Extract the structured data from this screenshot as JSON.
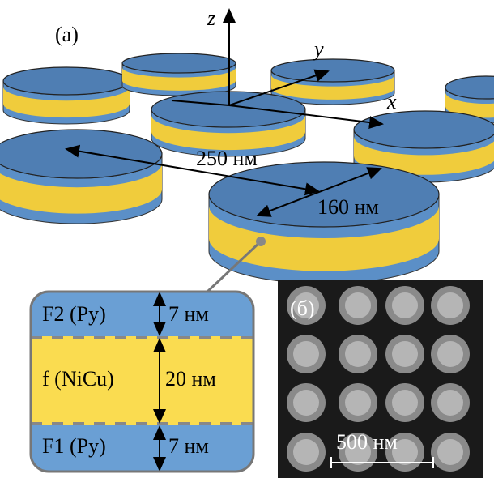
{
  "panel_a": {
    "label": "(a)",
    "axes": {
      "z": "z",
      "y": "y",
      "x": "x"
    },
    "dimensions": {
      "period": "250 нм",
      "diameter": "160 нм"
    },
    "layers": [
      {
        "name": "F2 (Py)",
        "thickness": "7 нм"
      },
      {
        "name": "f (NiCu)",
        "thickness": "20 нм"
      },
      {
        "name": "F1 (Py)",
        "thickness": "7 нм"
      }
    ]
  },
  "panel_b": {
    "label": "(б)",
    "scale_bar": "500 нм"
  }
}
